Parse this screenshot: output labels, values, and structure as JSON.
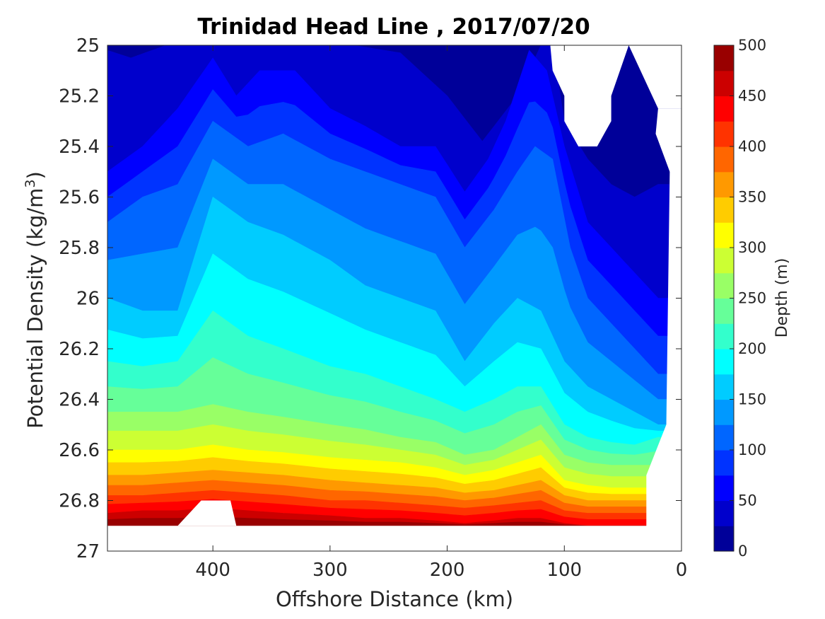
{
  "chart_data": {
    "type": "contour",
    "title": "Trinidad Head Line , 2017/07/20",
    "xlabel": "Offshore Distance (km)",
    "ylabel": "Potential Density (kg/m",
    "ylabel_sup": "3",
    "ylabel_tail": ")",
    "xlim": [
      490,
      0
    ],
    "xdir": "reversed",
    "x_ticks": [
      400,
      300,
      200,
      100,
      0
    ],
    "ylim": [
      25,
      27
    ],
    "ydir": "reversed",
    "y_ticks": [
      "25",
      "25.2",
      "25.4",
      "25.6",
      "25.8",
      "26",
      "26.2",
      "26.4",
      "26.6",
      "26.8",
      "27"
    ],
    "colorbar": {
      "label": "Depth (m)",
      "ticks": [
        0,
        50,
        100,
        150,
        200,
        250,
        300,
        350,
        400,
        450,
        500
      ],
      "levels": [
        0,
        25,
        50,
        75,
        100,
        125,
        150,
        175,
        200,
        225,
        250,
        275,
        300,
        325,
        350,
        375,
        400,
        425,
        450,
        475,
        500
      ],
      "colormap": "jet"
    },
    "depth_contours": [
      {
        "depth": 25,
        "x": [
          490,
          470,
          440,
          400,
          360,
          320,
          280,
          240,
          200,
          170,
          140,
          120,
          110,
          100,
          80,
          60,
          40,
          20
        ],
        "y": [
          25.02,
          25.05,
          25.0,
          25.0,
          25.0,
          25.0,
          25.0,
          25.03,
          25.2,
          25.38,
          25.2,
          25.0,
          25.0,
          25.3,
          25.45,
          25.55,
          25.6,
          25.55
        ]
      },
      {
        "depth": 50,
        "x": [
          490,
          460,
          430,
          400,
          380,
          360,
          330,
          300,
          270,
          240,
          210,
          185,
          165,
          150,
          130,
          115,
          100,
          80,
          60,
          40,
          20
        ],
        "y": [
          25.5,
          25.4,
          25.25,
          25.05,
          25.2,
          25.1,
          25.1,
          25.25,
          25.32,
          25.4,
          25.4,
          25.58,
          25.45,
          25.3,
          25.02,
          25.1,
          25.4,
          25.7,
          25.8,
          25.9,
          26.0
        ]
      },
      {
        "depth": 100,
        "x": [
          490,
          460,
          430,
          400,
          370,
          340,
          300,
          270,
          240,
          210,
          185,
          160,
          140,
          125,
          110,
          95,
          80,
          60,
          40,
          20
        ],
        "y": [
          25.7,
          25.6,
          25.55,
          25.3,
          25.4,
          25.35,
          25.45,
          25.5,
          25.55,
          25.6,
          25.8,
          25.65,
          25.5,
          25.4,
          25.45,
          25.8,
          26.0,
          26.1,
          26.2,
          26.3
        ]
      },
      {
        "depth": 150,
        "x": [
          490,
          460,
          430,
          400,
          370,
          340,
          300,
          270,
          240,
          210,
          185,
          160,
          140,
          120,
          100,
          80,
          60,
          40,
          20
        ],
        "y": [
          26.0,
          26.05,
          26.05,
          25.6,
          25.7,
          25.75,
          25.85,
          25.95,
          26.0,
          26.05,
          26.25,
          26.1,
          26.0,
          26.05,
          26.25,
          26.35,
          26.4,
          26.45,
          26.5
        ]
      },
      {
        "depth": 200,
        "x": [
          490,
          460,
          430,
          400,
          370,
          340,
          300,
          270,
          240,
          210,
          185,
          160,
          140,
          120,
          100,
          80,
          60,
          40,
          20
        ],
        "y": [
          26.25,
          26.27,
          26.25,
          26.05,
          26.15,
          26.2,
          26.27,
          26.3,
          26.35,
          26.4,
          26.45,
          26.4,
          26.35,
          26.35,
          26.5,
          26.55,
          26.57,
          26.58,
          26.55
        ]
      },
      {
        "depth": 250,
        "x": [
          490,
          460,
          430,
          400,
          370,
          340,
          300,
          270,
          240,
          210,
          185,
          160,
          140,
          120,
          100,
          80,
          60,
          40,
          25
        ],
        "y": [
          26.45,
          26.45,
          26.45,
          26.42,
          26.45,
          26.47,
          26.5,
          26.52,
          26.55,
          26.57,
          26.62,
          26.6,
          26.55,
          26.5,
          26.62,
          26.65,
          26.66,
          26.66,
          26.66
        ]
      },
      {
        "depth": 300,
        "x": [
          490,
          460,
          430,
          400,
          370,
          340,
          300,
          270,
          240,
          210,
          185,
          160,
          140,
          120,
          100,
          80,
          60,
          40,
          30
        ],
        "y": [
          26.6,
          26.6,
          26.6,
          26.58,
          26.6,
          26.61,
          26.63,
          26.64,
          26.65,
          26.67,
          26.7,
          26.68,
          26.65,
          26.62,
          26.72,
          26.74,
          26.75,
          26.75,
          26.75
        ]
      },
      {
        "depth": 350,
        "x": [
          490,
          460,
          430,
          400,
          370,
          340,
          300,
          270,
          240,
          210,
          185,
          160,
          140,
          120,
          100,
          80,
          60,
          40,
          30
        ],
        "y": [
          26.7,
          26.7,
          26.69,
          26.68,
          26.69,
          26.7,
          26.72,
          26.73,
          26.74,
          26.75,
          26.77,
          26.76,
          26.74,
          26.72,
          26.78,
          26.8,
          26.8,
          26.8,
          26.8
        ]
      },
      {
        "depth": 400,
        "x": [
          490,
          460,
          430,
          400,
          370,
          340,
          300,
          270,
          240,
          210,
          185,
          160,
          140,
          120,
          100,
          80,
          60,
          40,
          30
        ],
        "y": [
          26.78,
          26.78,
          26.77,
          26.76,
          26.77,
          26.78,
          26.8,
          26.8,
          26.81,
          26.82,
          26.83,
          26.82,
          26.81,
          26.8,
          26.84,
          26.85,
          26.85,
          26.85,
          26.85
        ]
      },
      {
        "depth": 450,
        "x": [
          490,
          460,
          430,
          400,
          370,
          340,
          300,
          270,
          240,
          210,
          185,
          160,
          140,
          120,
          100,
          80,
          60,
          40,
          30
        ],
        "y": [
          26.85,
          26.84,
          26.84,
          26.83,
          26.84,
          26.85,
          26.86,
          26.87,
          26.87,
          26.88,
          26.89,
          26.88,
          26.87,
          26.87,
          26.89,
          26.9,
          26.9,
          26.9,
          26.9
        ]
      }
    ],
    "no_data_regions": [
      "x 110 to 60, density 25 to 25.4",
      "x 30 to 0, density 25 to 26.9",
      "x 430 to 380, density 26.8 to 26.9",
      "all x, density 26.9 to 27"
    ]
  }
}
